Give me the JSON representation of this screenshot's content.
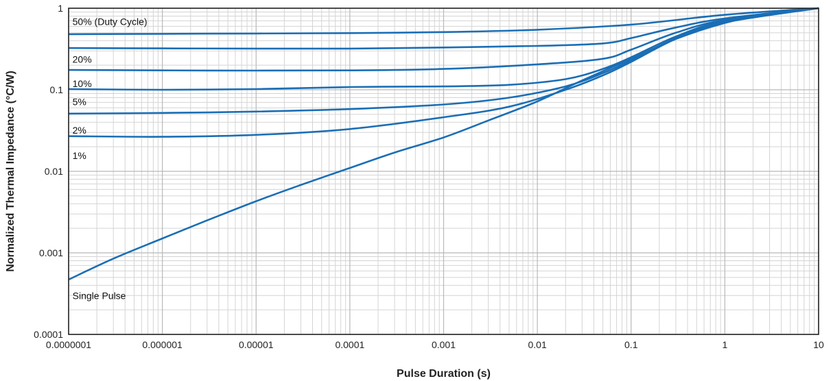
{
  "chart_data": {
    "type": "line",
    "xscale": "log",
    "yscale": "log",
    "grid": true,
    "xlabel": "Pulse Duration (s)",
    "ylabel": "Normalized Thermal Impedance (°C/W)",
    "xlim": [
      1e-07,
      10
    ],
    "ylim": [
      0.0001,
      1
    ],
    "x_ticks": [
      {
        "value": 1e-07,
        "label": "0.0000001"
      },
      {
        "value": 1e-06,
        "label": "0.000001"
      },
      {
        "value": 1e-05,
        "label": "0.00001"
      },
      {
        "value": 0.0001,
        "label": "0.0001"
      },
      {
        "value": 0.001,
        "label": "0.001"
      },
      {
        "value": 0.01,
        "label": "0.01"
      },
      {
        "value": 0.1,
        "label": "0.1"
      },
      {
        "value": 1,
        "label": "1"
      },
      {
        "value": 10,
        "label": "10"
      }
    ],
    "y_ticks": [
      {
        "value": 1,
        "label": "1"
      },
      {
        "value": 0.1,
        "label": "0.1"
      },
      {
        "value": 0.01,
        "label": "0.01"
      },
      {
        "value": 0.001,
        "label": "0.001"
      },
      {
        "value": 0.0001,
        "label": "0.0001"
      }
    ],
    "line_color": "#1a6eb5",
    "series": [
      {
        "name": "50% (Duty Cycle)",
        "label_at": [
          1.1e-07,
          0.62
        ],
        "points": [
          [
            1e-07,
            0.48
          ],
          [
            1e-06,
            0.485
          ],
          [
            1e-05,
            0.49
          ],
          [
            0.0001,
            0.495
          ],
          [
            0.001,
            0.51
          ],
          [
            0.01,
            0.545
          ],
          [
            0.1,
            0.63
          ],
          [
            1,
            0.83
          ],
          [
            10,
            1.0
          ]
        ]
      },
      {
        "name": "20%",
        "label_at": [
          1.1e-07,
          0.215
        ],
        "points": [
          [
            1e-07,
            0.325
          ],
          [
            1e-06,
            0.322
          ],
          [
            1e-05,
            0.32
          ],
          [
            0.0001,
            0.32
          ],
          [
            0.001,
            0.33
          ],
          [
            0.01,
            0.345
          ],
          [
            0.05,
            0.37
          ],
          [
            0.1,
            0.43
          ],
          [
            0.3,
            0.58
          ],
          [
            1,
            0.75
          ],
          [
            10,
            1.0
          ]
        ]
      },
      {
        "name": "10%",
        "label_at": [
          1.1e-07,
          0.108
        ],
        "points": [
          [
            1e-07,
            0.175
          ],
          [
            1e-06,
            0.173
          ],
          [
            1e-05,
            0.172
          ],
          [
            0.0001,
            0.173
          ],
          [
            0.001,
            0.18
          ],
          [
            0.01,
            0.205
          ],
          [
            0.05,
            0.24
          ],
          [
            0.1,
            0.31
          ],
          [
            0.3,
            0.5
          ],
          [
            1,
            0.72
          ],
          [
            10,
            1.0
          ]
        ]
      },
      {
        "name": "5%",
        "label_at": [
          1.1e-07,
          0.0645
        ],
        "points": [
          [
            1e-07,
            0.102
          ],
          [
            1e-06,
            0.1
          ],
          [
            1e-05,
            0.102
          ],
          [
            0.0001,
            0.108
          ],
          [
            0.001,
            0.11
          ],
          [
            0.005,
            0.115
          ],
          [
            0.02,
            0.135
          ],
          [
            0.05,
            0.18
          ],
          [
            0.1,
            0.25
          ],
          [
            0.3,
            0.45
          ],
          [
            1,
            0.7
          ],
          [
            10,
            1.0
          ]
        ]
      },
      {
        "name": "2%",
        "label_at": [
          1.1e-07,
          0.029
        ],
        "points": [
          [
            1e-07,
            0.051
          ],
          [
            1e-06,
            0.052
          ],
          [
            1e-05,
            0.054
          ],
          [
            0.0001,
            0.058
          ],
          [
            0.001,
            0.066
          ],
          [
            0.005,
            0.08
          ],
          [
            0.02,
            0.11
          ],
          [
            0.05,
            0.16
          ],
          [
            0.1,
            0.23
          ],
          [
            0.3,
            0.43
          ],
          [
            1,
            0.68
          ],
          [
            10,
            1.0
          ]
        ]
      },
      {
        "name": "1%",
        "label_at": [
          1.1e-07,
          0.0142
        ],
        "points": [
          [
            1e-07,
            0.027
          ],
          [
            1e-06,
            0.0265
          ],
          [
            1e-05,
            0.028
          ],
          [
            0.0001,
            0.033
          ],
          [
            0.001,
            0.046
          ],
          [
            0.005,
            0.062
          ],
          [
            0.02,
            0.1
          ],
          [
            0.05,
            0.15
          ],
          [
            0.1,
            0.22
          ],
          [
            0.3,
            0.42
          ],
          [
            1,
            0.67
          ],
          [
            10,
            1.0
          ]
        ]
      },
      {
        "name": "Single Pulse",
        "label_at": [
          1.1e-07,
          0.00027
        ],
        "points": [
          [
            1e-07,
            0.00047
          ],
          [
            3e-07,
            0.00085
          ],
          [
            1e-06,
            0.0015
          ],
          [
            3e-06,
            0.0025
          ],
          [
            1e-05,
            0.0043
          ],
          [
            3e-05,
            0.0068
          ],
          [
            0.0001,
            0.011
          ],
          [
            0.0003,
            0.017
          ],
          [
            0.001,
            0.026
          ],
          [
            0.003,
            0.042
          ],
          [
            0.01,
            0.072
          ],
          [
            0.03,
            0.13
          ],
          [
            0.1,
            0.24
          ],
          [
            0.3,
            0.42
          ],
          [
            1,
            0.66
          ],
          [
            3,
            0.86
          ],
          [
            10,
            1.0
          ]
        ]
      }
    ]
  }
}
